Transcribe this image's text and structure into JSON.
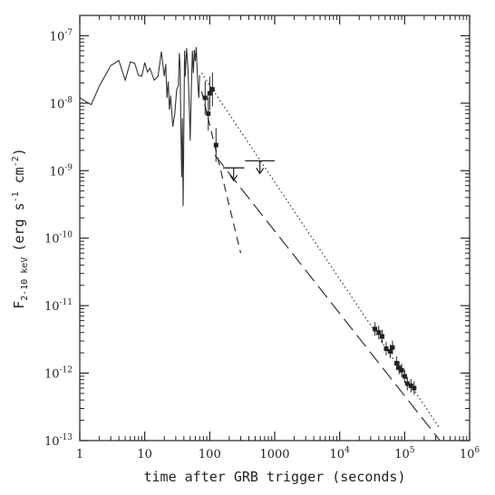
{
  "chart_data": {
    "type": "line",
    "xscale": "log",
    "yscale": "log",
    "xlim": [
      1,
      1000000
    ],
    "ylim": [
      1e-13,
      2e-07
    ],
    "xlabel": "time after GRB trigger (seconds)",
    "ylabel_main": "F",
    "ylabel_sub": "2-10 keV",
    "ylabel_units": "(erg s",
    "ylabel_units_sup1": "-1",
    "ylabel_units_mid": " cm",
    "ylabel_units_sup2": "-2",
    "ylabel_units_end": ")",
    "x_ticks": [
      {
        "value": 1,
        "label": "1"
      },
      {
        "value": 10,
        "label": "10"
      },
      {
        "value": 100,
        "label": "100"
      },
      {
        "value": 1000,
        "label": "1000"
      },
      {
        "value": 10000,
        "label": "10",
        "sup": "4"
      },
      {
        "value": 100000,
        "label": "10",
        "sup": "5"
      },
      {
        "value": 1000000,
        "label": "10",
        "sup": "6"
      }
    ],
    "y_ticks": [
      {
        "value": 1e-07,
        "label": "10",
        "sup": "-7"
      },
      {
        "value": 1e-08,
        "label": "10",
        "sup": "-8"
      },
      {
        "value": 1e-09,
        "label": "10",
        "sup": "-9"
      },
      {
        "value": 1e-10,
        "label": "10",
        "sup": "-10"
      },
      {
        "value": 1e-11,
        "label": "10",
        "sup": "-11"
      },
      {
        "value": 1e-12,
        "label": "10",
        "sup": "-12"
      },
      {
        "value": 1e-13,
        "label": "10",
        "sup": "-13"
      }
    ],
    "series": [
      {
        "style": "solid",
        "x": [
          1,
          1.5,
          2,
          3,
          4,
          5,
          6,
          7,
          8,
          9,
          10,
          11,
          12,
          14,
          16,
          18,
          20,
          21,
          22,
          23,
          24,
          25,
          27,
          29,
          31,
          33,
          34,
          35,
          36,
          37,
          38,
          39,
          40,
          41,
          42,
          44,
          46,
          48,
          50,
          52,
          54,
          56,
          58,
          60,
          62,
          64,
          66,
          68,
          70
        ],
        "y": [
          1.2e-08,
          9.5e-09,
          1.8e-08,
          3.6e-08,
          4.3e-08,
          2.2e-08,
          4.1e-08,
          3.9e-08,
          2.6e-08,
          2.5e-08,
          4e-08,
          2.9e-08,
          3.3e-08,
          2.2e-08,
          2.5e-08,
          5.8e-08,
          2.5e-08,
          3.8e-08,
          1.2e-08,
          2.1e-08,
          8e-09,
          1.3e-08,
          4.5e-09,
          7e-09,
          1.6e-08,
          1.8e-08,
          5.5e-08,
          3.5e-08,
          4.5e-09,
          8e-10,
          6e-09,
          3e-10,
          4e-09,
          6e-08,
          2.5e-08,
          6.5e-08,
          3.5e-08,
          1.2e-08,
          2.8e-09,
          1.5e-08,
          6e-08,
          2.8e-08,
          6.2e-08,
          4.2e-08,
          6.8e-08,
          3.2e-08,
          1.8e-08,
          1.2e-08,
          2.6e-08
        ]
      },
      {
        "style": "dotted",
        "x": [
          75,
          350000
        ],
        "y": [
          2.8e-08,
          1.5e-13
        ]
      },
      {
        "style": "dashed",
        "x": [
          75,
          300
        ],
        "y": [
          1.5e-08,
          6e-11
        ]
      },
      {
        "style": "long-dashed",
        "x": [
          120,
          350000
        ],
        "y": [
          1.7e-09,
          1e-13
        ]
      }
    ],
    "points": [
      {
        "x": 85,
        "y": 1.2e-08,
        "err": 0.25
      },
      {
        "x": 95,
        "y": 7e-09,
        "err": 0.25
      },
      {
        "x": 100,
        "y": 1.4e-08,
        "err": 0.25
      },
      {
        "x": 110,
        "y": 1.6e-08,
        "err": 0.25
      },
      {
        "x": 125,
        "y": 2.4e-09,
        "err": 0.25
      },
      {
        "x": 35000,
        "y": 4.5e-12,
        "err": 0.1
      },
      {
        "x": 40000,
        "y": 4e-12,
        "err": 0.1
      },
      {
        "x": 45000,
        "y": 3.5e-12,
        "err": 0.1
      },
      {
        "x": 52000,
        "y": 2.3e-12,
        "err": 0.1
      },
      {
        "x": 60000,
        "y": 2.1e-12,
        "err": 0.1
      },
      {
        "x": 65000,
        "y": 2.4e-12,
        "err": 0.1
      },
      {
        "x": 75000,
        "y": 1.4e-12,
        "err": 0.1
      },
      {
        "x": 82000,
        "y": 1.2e-12,
        "err": 0.1
      },
      {
        "x": 90000,
        "y": 1.1e-12,
        "err": 0.1
      },
      {
        "x": 100000,
        "y": 9e-13,
        "err": 0.1
      },
      {
        "x": 110000,
        "y": 7e-13,
        "err": 0.1
      },
      {
        "x": 125000,
        "y": 6.5e-13,
        "err": 0.1
      },
      {
        "x": 140000,
        "y": 6e-13,
        "err": 0.1
      }
    ],
    "upper_limits": [
      {
        "x1": 160,
        "x2": 340,
        "y": 1.1e-09
      },
      {
        "x1": 350,
        "x2": 1000,
        "y": 1.4e-09
      }
    ],
    "grid": false,
    "legend": "none"
  }
}
